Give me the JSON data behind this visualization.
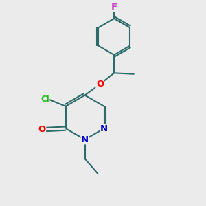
{
  "background_color": "#ebebeb",
  "bond_color": "#2d6b6b",
  "atom_colors": {
    "F": "#cc44cc",
    "O": "#ff0000",
    "N": "#0000cc",
    "Cl": "#22bb22",
    "C": "#2d6b6b"
  },
  "figsize": [
    3.0,
    3.0
  ],
  "dpi": 100
}
